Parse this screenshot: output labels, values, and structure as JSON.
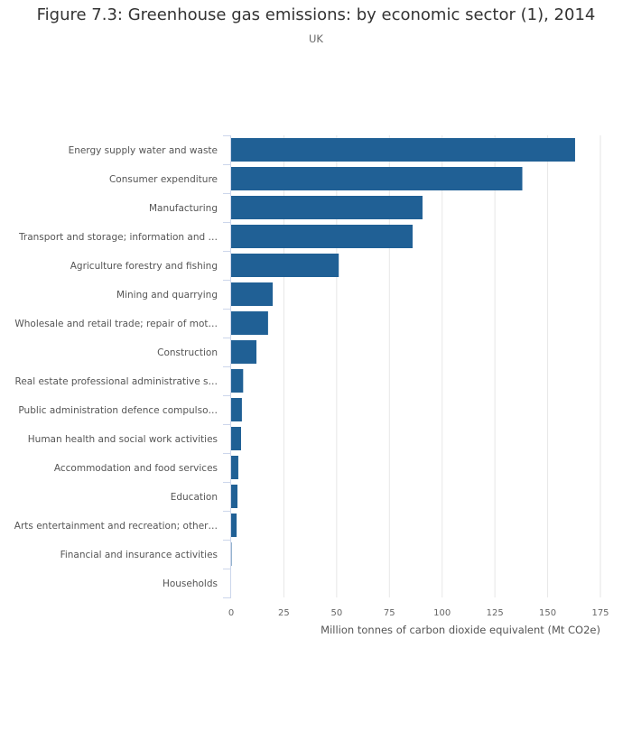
{
  "chart_data": {
    "type": "bar",
    "orientation": "horizontal",
    "title": "Figure 7.3: Greenhouse gas emissions: by economic sector (1), 2014",
    "subtitle": "UK",
    "xlabel": "Million tonnes of carbon dioxide equivalent (Mt CO2e)",
    "ylabel": "",
    "xlim": [
      0,
      175
    ],
    "xticks": [
      0,
      25,
      50,
      75,
      100,
      125,
      150,
      175
    ],
    "grid": true,
    "color": "#206095",
    "categories": [
      "Energy supply water and waste",
      "Consumer expenditure",
      "Manufacturing",
      "Transport and storage; information and …",
      "Agriculture forestry and fishing",
      "Mining and quarrying",
      "Wholesale and retail trade; repair of mot…",
      "Construction",
      "Real estate professional administrative s…",
      "Public administration defence compulso…",
      "Human health and social work activities",
      "Accommodation and food services",
      "Education",
      "Arts entertainment and recreation; other…",
      "Financial and insurance activities",
      "Households"
    ],
    "values": [
      163,
      138,
      90.7,
      86,
      51,
      19.7,
      17.5,
      12,
      5.7,
      5.1,
      4.7,
      3.4,
      3.0,
      2.6,
      0.2,
      0
    ]
  }
}
